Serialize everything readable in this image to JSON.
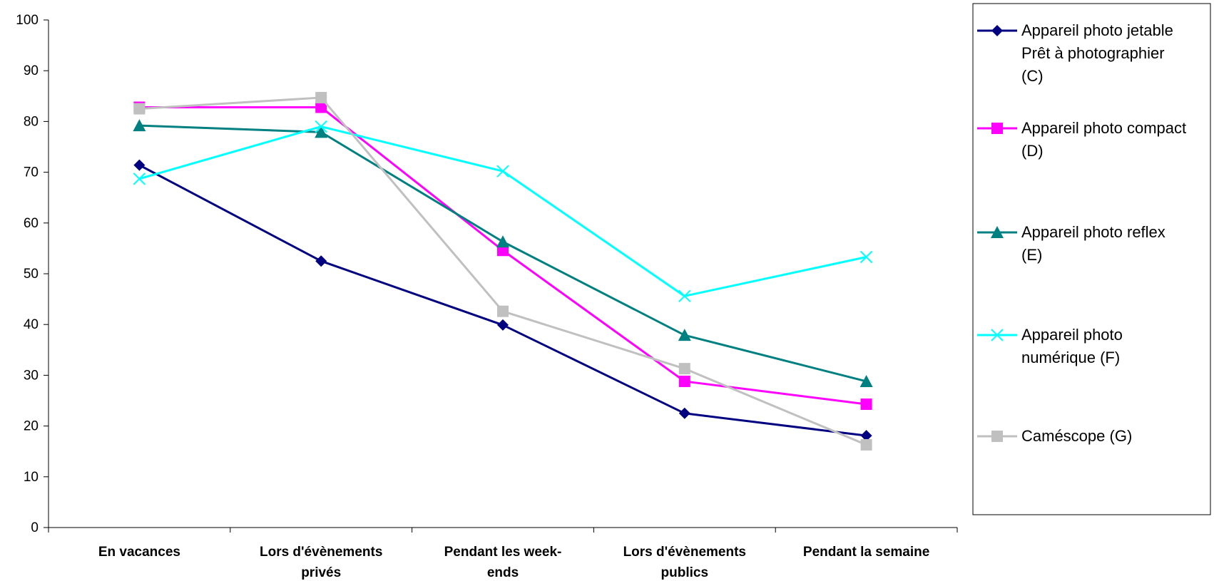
{
  "chart_data": {
    "type": "line",
    "title": "",
    "xlabel": "",
    "ylabel": "",
    "ylim": [
      0,
      100
    ],
    "yticks": [
      "0",
      "10",
      "20",
      "30",
      "40",
      "50",
      "60",
      "70",
      "80",
      "90",
      "100"
    ],
    "categories": [
      [
        "En vacances"
      ],
      [
        "Lors d'évènements",
        "privés"
      ],
      [
        "Pendant les week-",
        "ends"
      ],
      [
        "Lors d'évènements",
        "publics"
      ],
      [
        "Pendant la semaine"
      ]
    ],
    "grid": false,
    "legend_position": "right",
    "series": [
      {
        "name": "Appareil photo jetable Prêt à photographier (C)",
        "legend_lines": [
          "Appareil photo jetable",
          "Prêt à photographier",
          "(C)"
        ],
        "color": "#000080",
        "marker": "diamond",
        "values": [
          71.4,
          52.5,
          39.9,
          22.5,
          18.1
        ]
      },
      {
        "name": "Appareil photo compact (D)",
        "legend_lines": [
          "Appareil photo compact",
          "(D)"
        ],
        "color": "#FF00FF",
        "marker": "square",
        "values": [
          82.8,
          82.8,
          54.6,
          28.8,
          24.3
        ]
      },
      {
        "name": "Appareil photo reflex (E)",
        "legend_lines": [
          "Appareil photo reflex",
          "(E)"
        ],
        "color": "#008080",
        "marker": "triangle",
        "values": [
          79.2,
          77.9,
          56.3,
          37.9,
          28.8
        ]
      },
      {
        "name": "Appareil photo numérique (F)",
        "legend_lines": [
          "Appareil photo",
          "numérique (F)"
        ],
        "color": "#00FFFF",
        "marker": "x",
        "values": [
          68.7,
          79.0,
          70.2,
          45.6,
          53.3
        ]
      },
      {
        "name": "Caméscope (G)",
        "legend_lines": [
          "Caméscope (G)"
        ],
        "color": "#C0C0C0",
        "marker": "square",
        "values": [
          82.5,
          84.7,
          42.6,
          31.3,
          16.3
        ]
      }
    ]
  }
}
